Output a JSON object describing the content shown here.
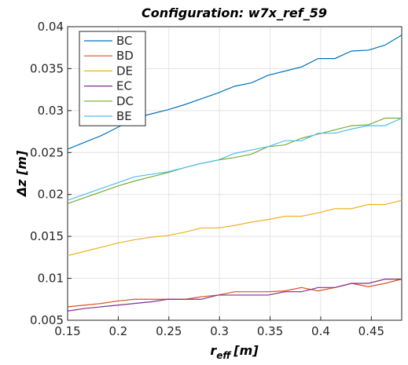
{
  "chart_data": {
    "type": "line",
    "title": "Configuration: w7x_ref_59",
    "xlabel": [
      "r",
      "eff",
      "[m]"
    ],
    "ylabel": "Δz [m]",
    "x": [
      0.15,
      0.1665,
      0.183,
      0.1995,
      0.216,
      0.2325,
      0.249,
      0.2655,
      0.282,
      0.2985,
      0.315,
      0.3315,
      0.348,
      0.3645,
      0.381,
      0.3975,
      0.414,
      0.4305,
      0.447,
      0.4635,
      0.48
    ],
    "series": [
      {
        "name": "BC",
        "color": "#0072bd",
        "values": [
          0.0254,
          0.0262,
          0.027,
          0.028,
          0.0291,
          0.0296,
          0.0301,
          0.0307,
          0.0314,
          0.0321,
          0.0329,
          0.0333,
          0.0342,
          0.0347,
          0.0352,
          0.0362,
          0.0362,
          0.0371,
          0.0372,
          0.0378,
          0.039
        ]
      },
      {
        "name": "BD",
        "color": "#d95319",
        "values": [
          0.0066,
          0.0068,
          0.007,
          0.0073,
          0.0075,
          0.0075,
          0.0075,
          0.0075,
          0.0078,
          0.008,
          0.0084,
          0.0084,
          0.0084,
          0.0085,
          0.0089,
          0.0085,
          0.0089,
          0.0094,
          0.009,
          0.0094,
          0.0099
        ]
      },
      {
        "name": "DE",
        "color": "#edb120",
        "values": [
          0.0127,
          0.0132,
          0.0137,
          0.0142,
          0.0146,
          0.0149,
          0.0151,
          0.0155,
          0.016,
          0.016,
          0.0163,
          0.0167,
          0.017,
          0.0174,
          0.0174,
          0.0178,
          0.0183,
          0.0183,
          0.0188,
          0.0188,
          0.0193
        ]
      },
      {
        "name": "EC",
        "color": "#7e2f8e",
        "values": [
          0.0061,
          0.0064,
          0.0066,
          0.0068,
          0.007,
          0.0072,
          0.0075,
          0.0075,
          0.0075,
          0.008,
          0.008,
          0.008,
          0.008,
          0.0084,
          0.0084,
          0.0089,
          0.0089,
          0.0094,
          0.0094,
          0.0099,
          0.0099
        ]
      },
      {
        "name": "DC",
        "color": "#77ac30",
        "values": [
          0.0189,
          0.0196,
          0.0203,
          0.021,
          0.0216,
          0.0221,
          0.0226,
          0.0232,
          0.0237,
          0.0241,
          0.0244,
          0.0248,
          0.0257,
          0.0259,
          0.0267,
          0.0272,
          0.0277,
          0.0282,
          0.0283,
          0.0291,
          0.0291
        ]
      },
      {
        "name": "BE",
        "color": "#4dbeee",
        "values": [
          0.0193,
          0.02,
          0.0207,
          0.0214,
          0.0221,
          0.0224,
          0.0227,
          0.0232,
          0.0237,
          0.0241,
          0.0249,
          0.0253,
          0.0257,
          0.0264,
          0.0264,
          0.0273,
          0.0273,
          0.0278,
          0.0282,
          0.0282,
          0.0291
        ]
      }
    ],
    "xlim": [
      0.15,
      0.48
    ],
    "ylim": [
      0.005,
      0.04
    ],
    "xticks": [
      0.15,
      0.2,
      0.25,
      0.3,
      0.35,
      0.4,
      0.45
    ],
    "yticks": [
      0.005,
      0.01,
      0.015,
      0.02,
      0.025,
      0.03,
      0.035,
      0.04
    ],
    "grid": true,
    "legend": "top-left"
  }
}
